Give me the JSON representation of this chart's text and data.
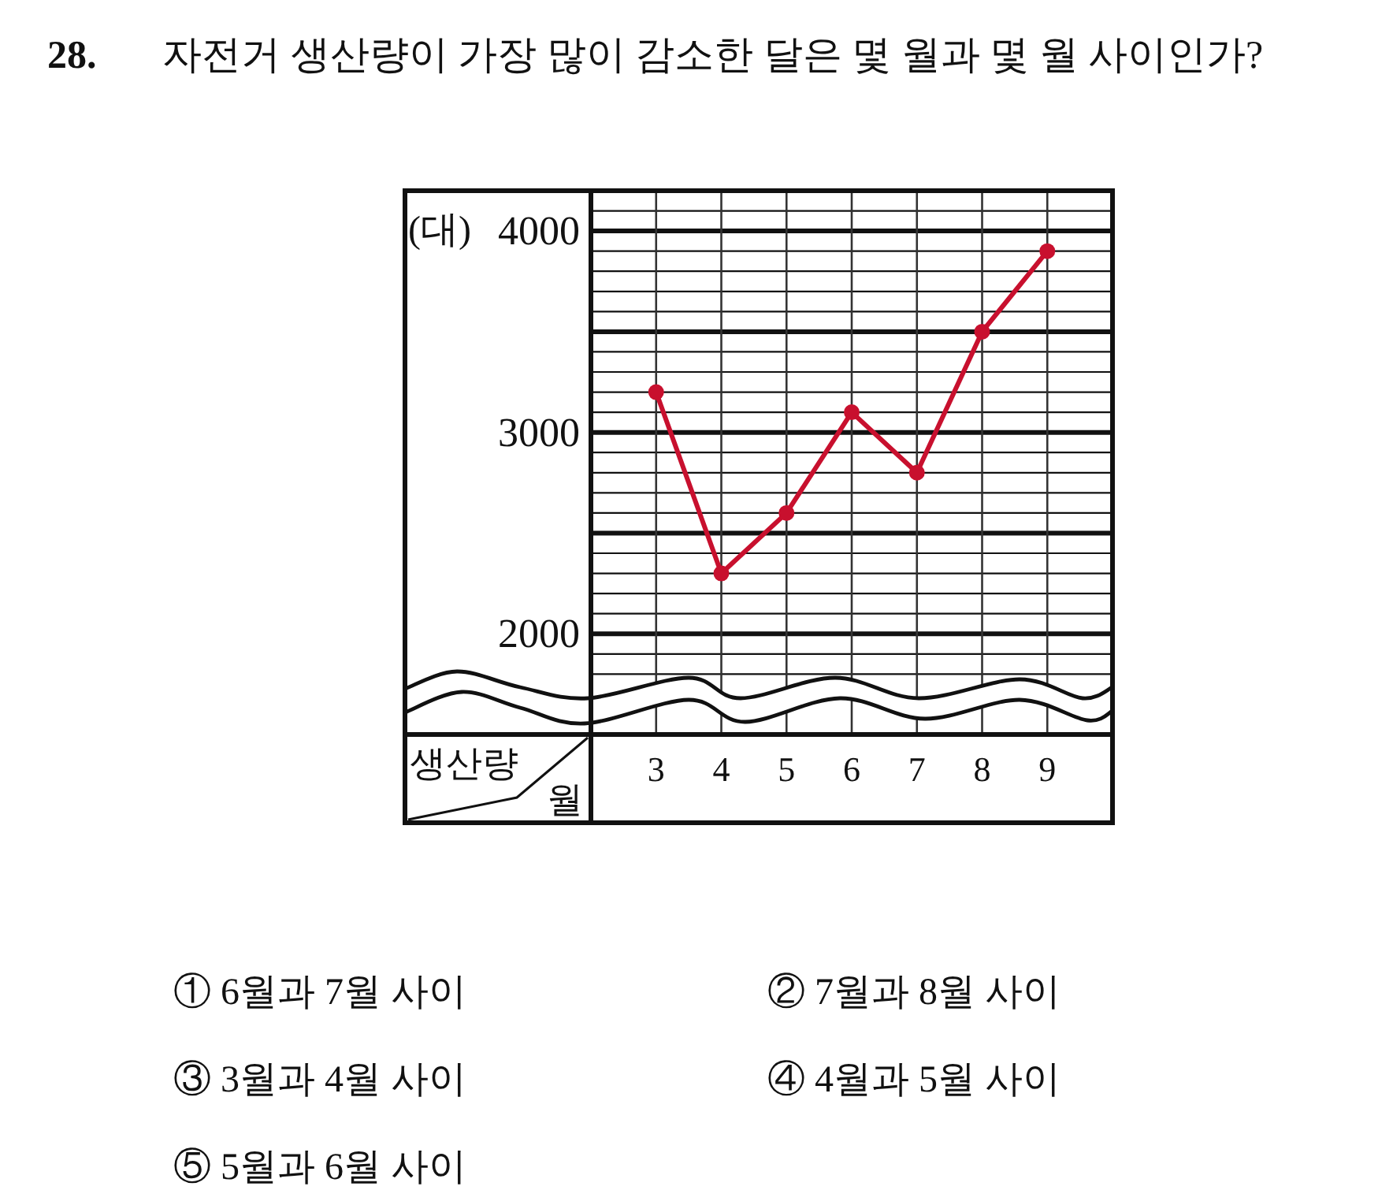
{
  "chart_data": {
    "type": "line",
    "title": "28. 자전거 생산량이 가장 많이 감소한 달은 몇 월과 몇 월 사이인가?",
    "xlabel": "월",
    "ylabel": "생산량",
    "categories": [
      "3",
      "4",
      "5",
      "6",
      "7",
      "8",
      "9"
    ],
    "series": [
      {
        "color": "#c8102e",
        "values": [
          3200,
          2300,
          2600,
          3100,
          2800,
          3500,
          3900
        ]
      }
    ],
    "ylim": [
      1500,
      4200
    ],
    "yticks": [
      {
        "value": 1800,
        "label": null
      },
      {
        "value": 1900,
        "label": null
      },
      2000,
      {
        "value": 2100,
        "label": null
      },
      {
        "value": 2200,
        "label": null
      },
      {
        "value": 2300,
        "label": null
      },
      {
        "value": 2400,
        "label": null
      },
      {
        "value": 2500,
        "label": null
      },
      {
        "value": 2600,
        "label": null
      },
      {
        "value": 2700,
        "label": null
      },
      {
        "value": 2800,
        "label": null
      },
      {
        "value": 2900,
        "label": null
      },
      3000,
      {
        "value": 3100,
        "label": null
      },
      {
        "value": 3200,
        "label": null
      },
      {
        "value": 3300,
        "label": null
      },
      {
        "value": 3400,
        "label": null
      },
      {
        "value": 3500,
        "label": null
      },
      {
        "value": 3600,
        "label": null
      },
      {
        "value": 3700,
        "label": null
      },
      {
        "value": 3800,
        "label": null
      },
      {
        "value": 3900,
        "label": null
      },
      4000,
      {
        "value": 4100,
        "label": null
      }
    ],
    "grid": true,
    "marker": "circle",
    "line_style": "solid",
    "annotations": [
      "(대)",
      "① 6월과 7월 사이",
      "② 7월과 8월 사이",
      "③ 3월과 4월 사이",
      "④ 4월과 5월 사이",
      "⑤ 5월과 6월 사이"
    ]
  }
}
